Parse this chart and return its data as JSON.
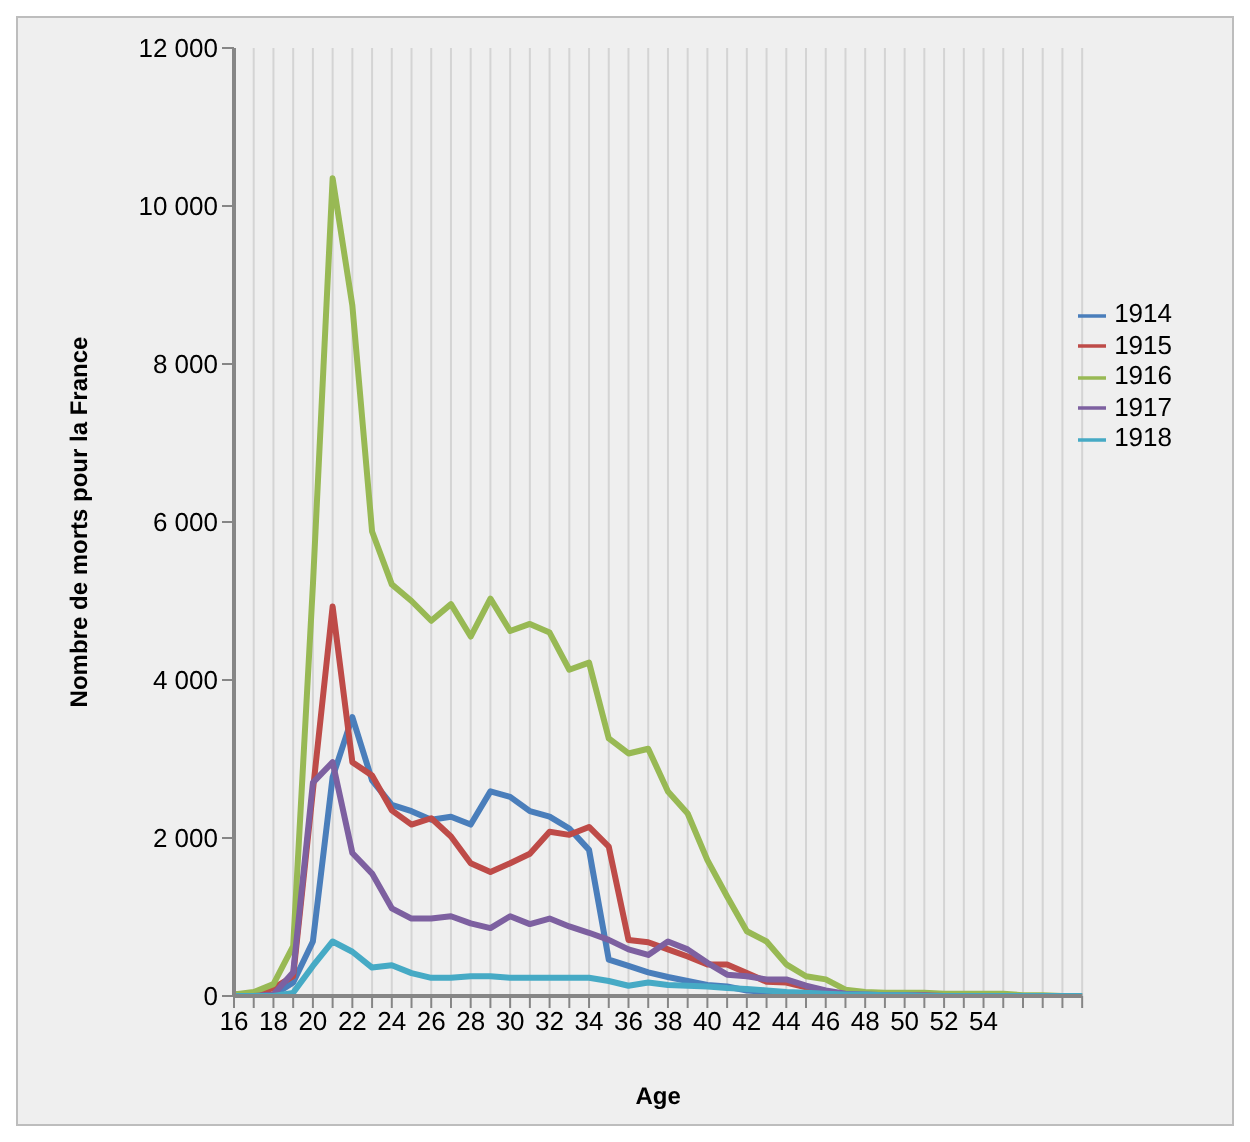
{
  "chart_data": {
    "type": "line",
    "xlabel": "Age",
    "ylabel": "Nombre de morts pour la France",
    "categories": [
      "16",
      null,
      "18",
      null,
      "20",
      null,
      "22",
      null,
      "24",
      null,
      "26",
      null,
      "28",
      null,
      "30",
      null,
      "32",
      null,
      "34",
      null,
      "36",
      null,
      "38",
      null,
      "40",
      null,
      "42",
      null,
      "44",
      null,
      "46",
      null,
      "48",
      null,
      "50",
      null,
      "52",
      null,
      "54",
      null,
      null,
      null,
      null,
      null
    ],
    "series": [
      {
        "name": "1914",
        "color": "#4a7ebb",
        "values": [
          0,
          0,
          10,
          170,
          690,
          2770,
          3530,
          2730,
          2420,
          2340,
          2230,
          2270,
          2170,
          2590,
          2520,
          2340,
          2270,
          2120,
          1850,
          460,
          380,
          300,
          240,
          190,
          140,
          120,
          70,
          50,
          30,
          20,
          10,
          0,
          0,
          0,
          0,
          0,
          0,
          null,
          null,
          null,
          null,
          null,
          null,
          null
        ]
      },
      {
        "name": "1915",
        "color": "#be4b48",
        "values": [
          20,
          30,
          100,
          250,
          2600,
          4930,
          2960,
          2790,
          2350,
          2170,
          2250,
          2020,
          1680,
          1570,
          1680,
          1800,
          2080,
          2040,
          2140,
          1890,
          710,
          680,
          590,
          500,
          400,
          400,
          290,
          180,
          170,
          110,
          60,
          null,
          null,
          null,
          null,
          null,
          null,
          null,
          null,
          null,
          null,
          null,
          null,
          null
        ]
      },
      {
        "name": "1916",
        "color": "#98b954",
        "values": [
          20,
          50,
          150,
          630,
          5200,
          10350,
          8740,
          5880,
          5210,
          5000,
          4750,
          4960,
          4550,
          5030,
          4620,
          4710,
          4600,
          4130,
          4220,
          3260,
          3070,
          3130,
          2590,
          2310,
          1720,
          1260,
          820,
          690,
          400,
          250,
          210,
          80,
          50,
          40,
          40,
          40,
          30,
          30,
          30,
          30,
          10,
          10,
          0,
          0
        ]
      },
      {
        "name": "1917",
        "color": "#7d60a0",
        "values": [
          0,
          0,
          20,
          300,
          2700,
          2960,
          1810,
          1550,
          1110,
          980,
          980,
          1010,
          920,
          860,
          1010,
          910,
          980,
          880,
          800,
          710,
          590,
          520,
          690,
          590,
          420,
          270,
          250,
          210,
          210,
          130,
          70,
          30,
          20,
          10,
          10,
          10,
          0,
          0,
          0,
          0,
          0,
          0,
          0,
          0
        ]
      },
      {
        "name": "1918",
        "color": "#46aac5",
        "values": [
          0,
          0,
          0,
          40,
          380,
          690,
          560,
          360,
          390,
          290,
          230,
          230,
          250,
          250,
          230,
          230,
          230,
          230,
          230,
          190,
          130,
          170,
          140,
          130,
          120,
          100,
          90,
          70,
          50,
          40,
          30,
          20,
          20,
          10,
          10,
          0,
          0,
          0,
          0,
          0,
          0,
          0,
          0,
          0
        ]
      }
    ],
    "ylim": [
      0,
      12000
    ],
    "yticks": [
      {
        "value": 0,
        "label": "0"
      },
      {
        "value": 2000,
        "label": "2 000"
      },
      {
        "value": 4000,
        "label": "4 000"
      },
      {
        "value": 6000,
        "label": "6 000"
      },
      {
        "value": 8000,
        "label": "8 000"
      },
      {
        "value": 10000,
        "label": "10 000"
      },
      {
        "value": 12000,
        "label": "12 000"
      }
    ],
    "grid": "x",
    "legend": "right",
    "marker": "none",
    "line_style": "solid"
  }
}
